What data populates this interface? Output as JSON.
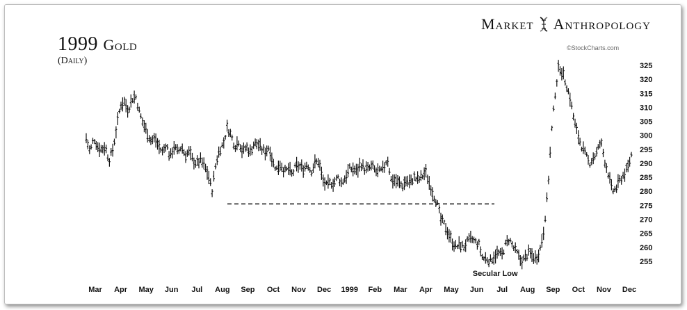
{
  "header": {
    "title_num": "1999",
    "title_word": "Gold",
    "subtitle": "(Daily)",
    "brand_left": "Market",
    "brand_right": "Anthropology",
    "source": "©StockCharts.com"
  },
  "icons": {
    "brand_icon": "dna-helix-icon"
  },
  "chart_data": {
    "type": "line",
    "title": "1999 Gold",
    "subtitle": "(Daily)",
    "xlabel": "",
    "ylabel": "",
    "ylim": [
      251,
      328
    ],
    "y_ticks": [
      255,
      260,
      265,
      270,
      275,
      280,
      285,
      290,
      295,
      300,
      305,
      310,
      315,
      320,
      325
    ],
    "x_ticks": [
      "Mar",
      "Apr",
      "May",
      "Jun",
      "Jul",
      "Aug",
      "Sep",
      "Oct",
      "Nov",
      "Dec",
      "1999",
      "Feb",
      "Mar",
      "Apr",
      "May",
      "Jun",
      "Jul",
      "Aug",
      "Sep",
      "Oct",
      "Nov",
      "Dec"
    ],
    "grid": false,
    "series": [
      {
        "values": [
          299,
          294,
          299,
          296,
          295,
          296,
          291,
          295,
          303,
          311,
          312,
          309,
          313,
          314,
          308,
          304,
          301,
          298,
          299,
          296,
          294,
          297,
          292,
          296,
          294,
          296,
          293,
          294,
          291,
          290,
          291,
          289,
          286,
          280,
          290,
          295,
          297,
          303,
          300,
          296,
          298,
          294,
          296,
          294,
          297,
          297,
          295,
          294,
          296,
          290,
          288,
          290,
          287,
          288,
          286,
          289,
          289,
          288,
          290,
          287,
          290,
          291,
          284,
          282,
          283,
          283,
          285,
          283,
          285,
          288,
          288,
          287,
          290,
          288,
          288,
          289,
          287,
          287,
          288,
          292,
          284,
          284,
          283,
          282,
          284,
          283,
          285,
          284,
          285,
          287,
          283,
          279,
          276,
          270,
          268,
          265,
          262,
          260,
          261,
          260,
          262,
          263,
          262,
          261,
          256,
          256,
          255,
          257,
          258,
          257,
          261,
          263,
          260,
          258,
          255,
          256,
          258,
          257,
          256,
          259,
          266,
          279,
          300,
          315,
          325,
          322,
          318,
          313,
          305,
          300,
          296,
          293,
          290,
          292,
          294,
          298,
          291,
          286,
          280,
          281,
          284,
          286,
          288,
          293
        ]
      }
    ],
    "reference_line": {
      "value": 275.5,
      "style": "dashed"
    },
    "annotations": [
      {
        "text": "Secular Low",
        "x_month": "Jul",
        "value": 254
      }
    ]
  }
}
